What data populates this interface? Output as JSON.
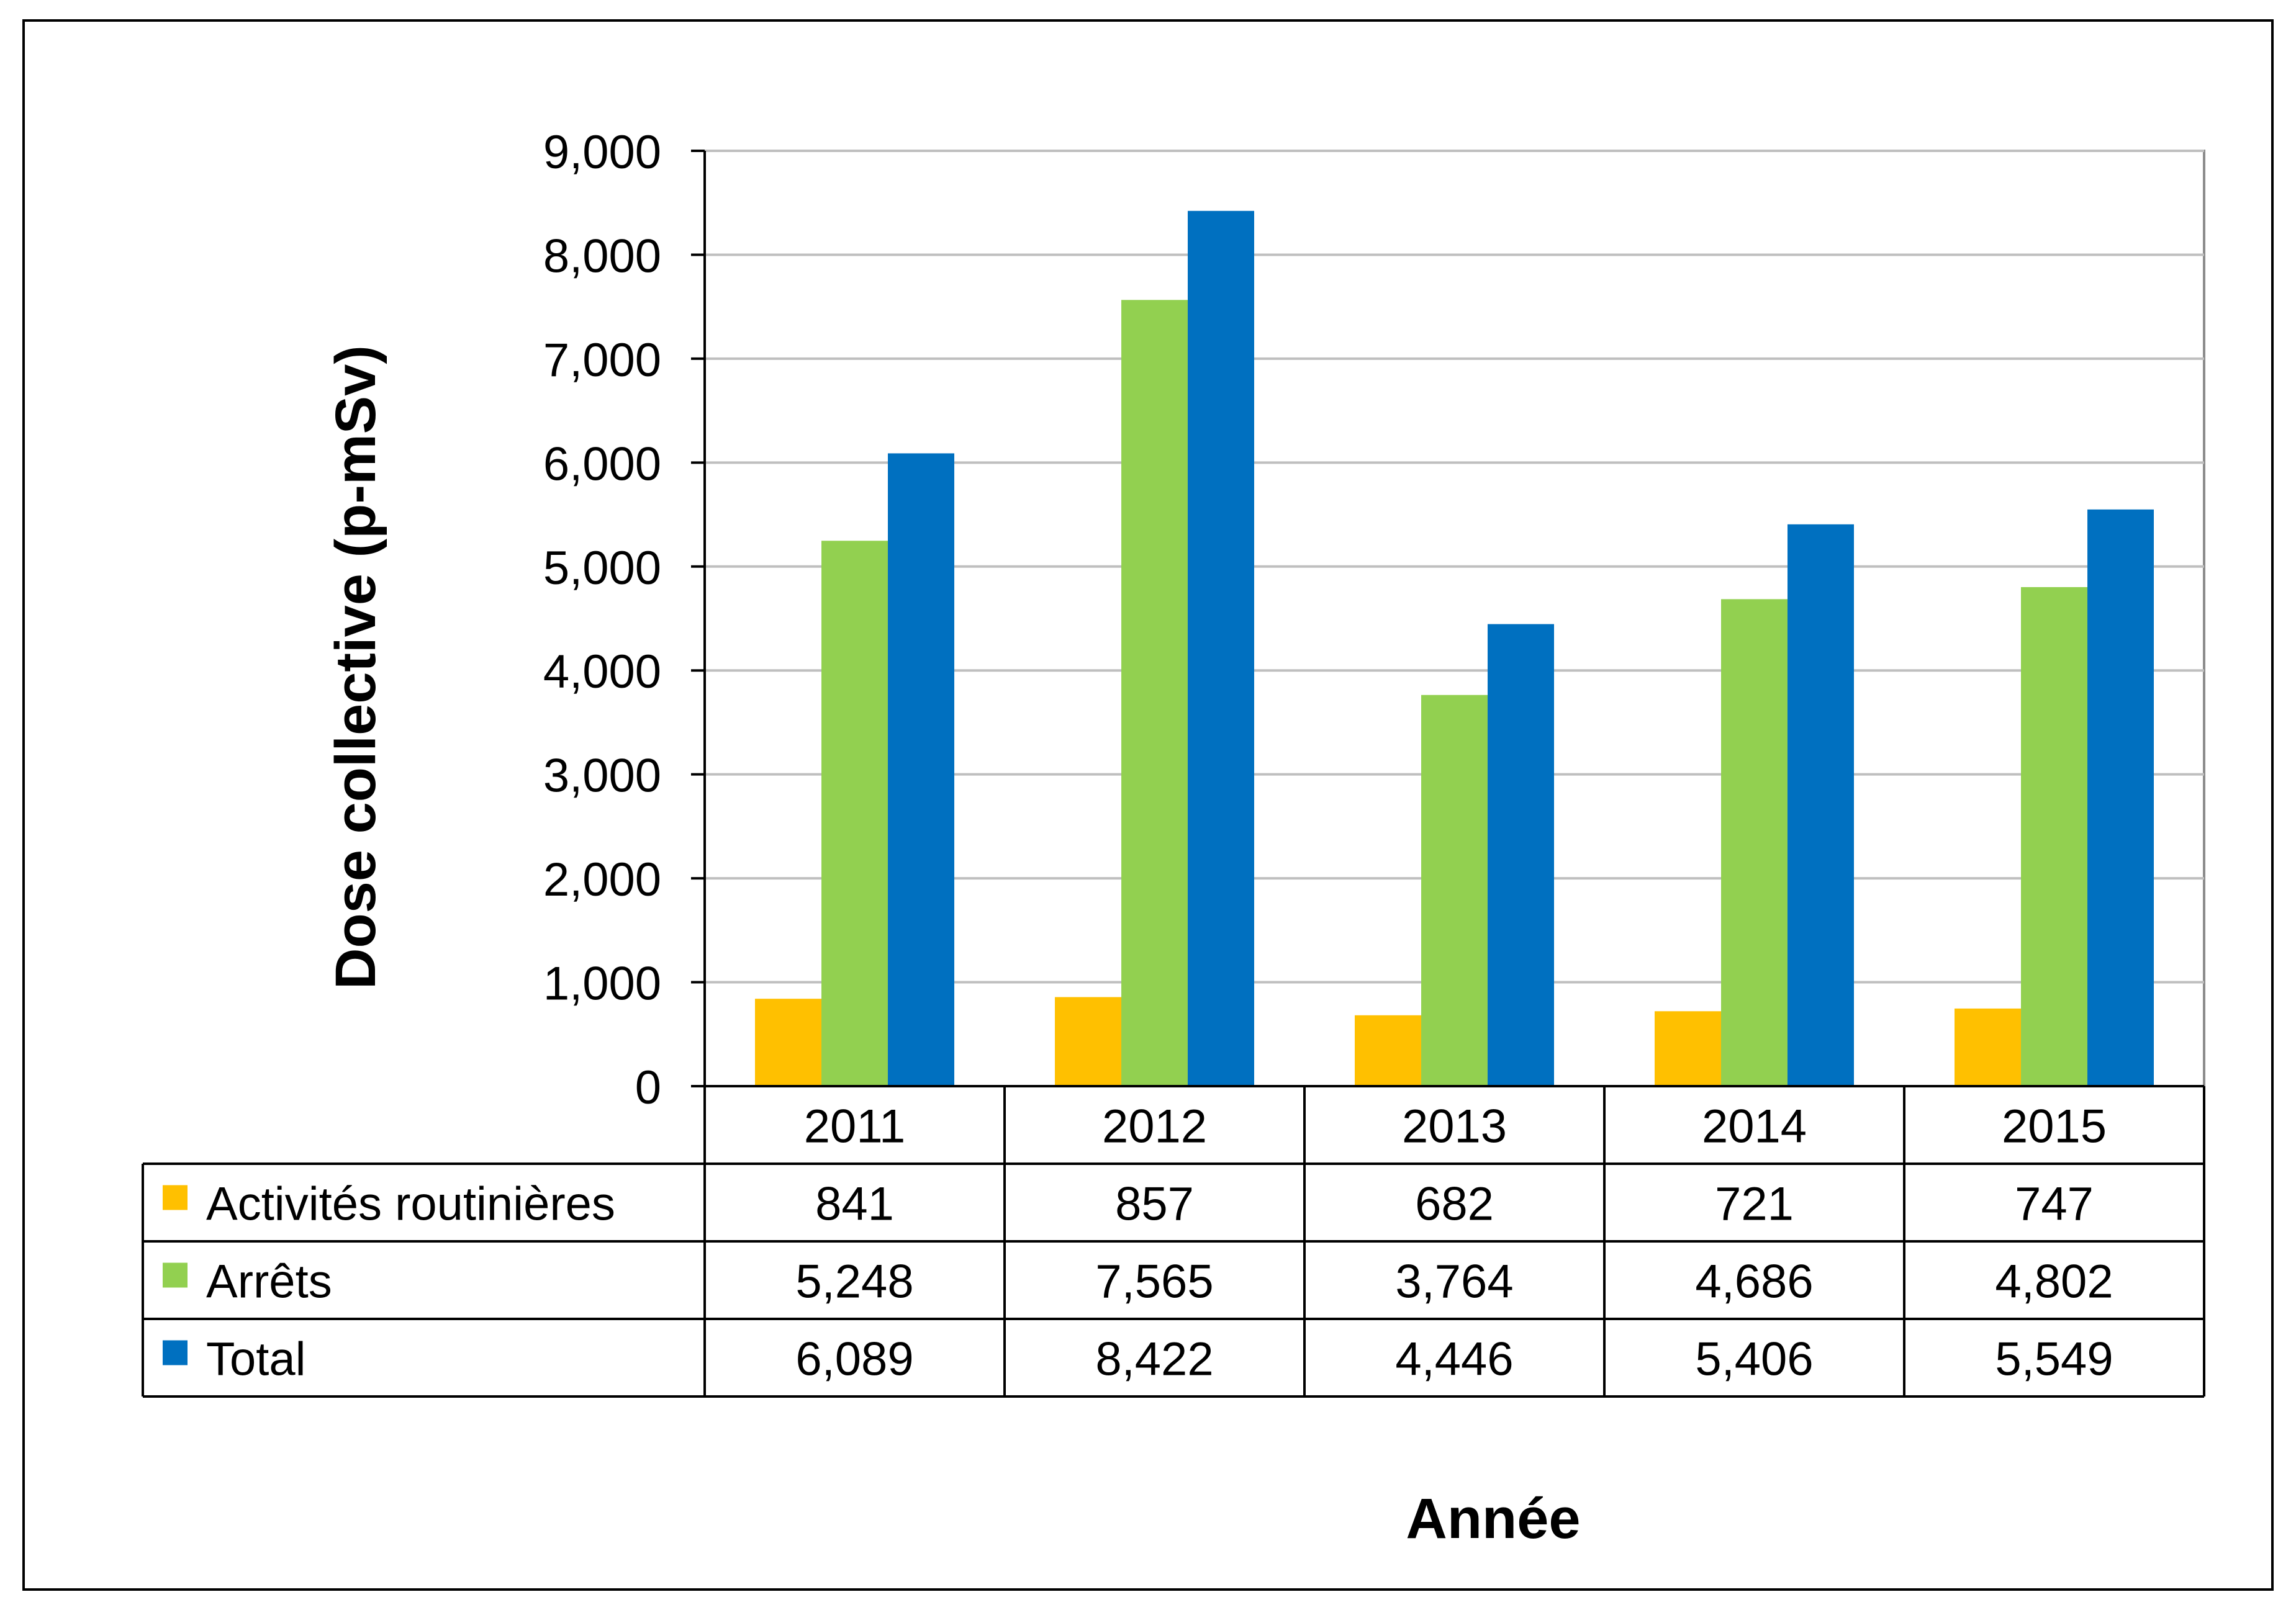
{
  "chart_data": {
    "type": "bar",
    "title": "",
    "ylabel": "Dose collective (p-mSv)",
    "xlabel": "Année",
    "categories": [
      "2011",
      "2012",
      "2013",
      "2014",
      "2015"
    ],
    "ylim": [
      0,
      9000
    ],
    "yticks": [
      0,
      1000,
      2000,
      3000,
      4000,
      5000,
      6000,
      7000,
      8000,
      9000
    ],
    "ytick_labels": [
      "0",
      "1,000",
      "2,000",
      "3,000",
      "4,000",
      "5,000",
      "6,000",
      "7,000",
      "8,000",
      "9,000"
    ],
    "grid": true,
    "legend": "data-table",
    "series": [
      {
        "name": "Activités routinières",
        "color": "#FFC000",
        "values": [
          841,
          857,
          682,
          721,
          747
        ],
        "labels": [
          "841",
          "857",
          "682",
          "721",
          "747"
        ]
      },
      {
        "name": "Arrêts",
        "color": "#92D050",
        "values": [
          5248,
          7565,
          3764,
          4686,
          4802
        ],
        "labels": [
          "5,248",
          "7,565",
          "3,764",
          "4,686",
          "4,802"
        ]
      },
      {
        "name": "Total",
        "color": "#0070C0",
        "values": [
          6089,
          8422,
          4446,
          5406,
          5549
        ],
        "labels": [
          "6,089",
          "8,422",
          "4,446",
          "5,406",
          "5,549"
        ]
      }
    ]
  }
}
